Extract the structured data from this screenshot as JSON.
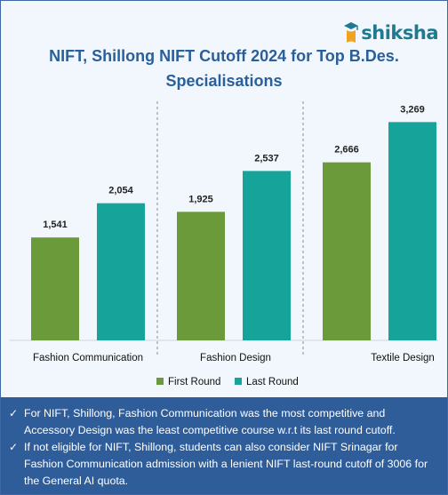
{
  "brand": {
    "name": "shiksha",
    "accent": "#1f7a8f"
  },
  "colors": {
    "first_round": "#6b9a3a",
    "last_round": "#16a39a",
    "title": "#2a5f9a",
    "notes_bg": "#2f5d9a"
  },
  "chart_data": {
    "type": "bar",
    "title": "NIFT, Shillong NIFT Cutoff 2024 for Top B.Des. Specialisations",
    "categories": [
      "Fashion Communication",
      "Fashion Design",
      "Textile Design"
    ],
    "series": [
      {
        "name": "First Round",
        "values": [
          1541,
          1925,
          2666
        ],
        "labels": [
          "1,541",
          "1,925",
          "2,666"
        ]
      },
      {
        "name": "Last Round",
        "values": [
          2054,
          2537,
          3269
        ],
        "labels": [
          "2,054",
          "2,537",
          "3,269"
        ]
      }
    ],
    "ylim": [
      0,
      3580
    ],
    "grid": false,
    "legend": "bottom",
    "group_separators": "dashed"
  },
  "notes": [
    "For NIFT, Shillong, Fashion Communication was the most competitive and Accessory Design was the least competitive course w.r.t its last round cutoff.",
    "If not eligible for NIFT, Shillong, students can also consider NIFT Srinagar for Fashion Communication admission with a lenient NIFT last-round cutoff of 3006 for the General AI quota."
  ],
  "note_icon": "check-icon"
}
